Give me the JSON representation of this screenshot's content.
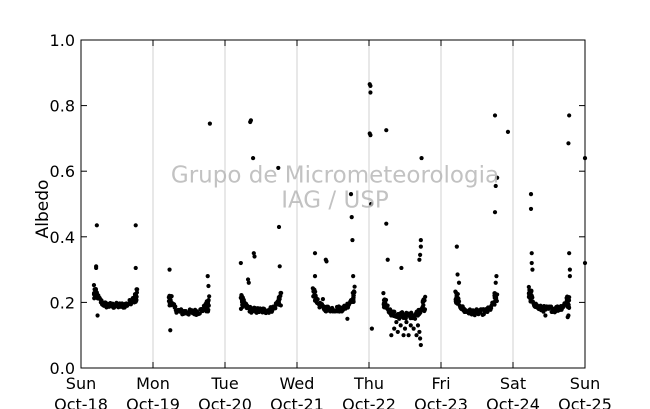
{
  "chart_data": {
    "type": "scatter",
    "ylabel": "Albedo",
    "ylim": [
      0,
      1
    ],
    "yticks": [
      0.0,
      0.2,
      0.4,
      0.6,
      0.8,
      1.0
    ],
    "ytick_labels": [
      "0.0",
      "0.2",
      "0.4",
      "0.6",
      "0.8",
      "1.0"
    ],
    "xlim": [
      0,
      7
    ],
    "xticks": [
      {
        "day": "Sun",
        "date": "Oct-18"
      },
      {
        "day": "Mon",
        "date": "Oct-19"
      },
      {
        "day": "Tue",
        "date": "Oct-20"
      },
      {
        "day": "Wed",
        "date": "Oct-21"
      },
      {
        "day": "Thu",
        "date": "Oct-22"
      },
      {
        "day": "Fri",
        "date": "Oct-23"
      },
      {
        "day": "Sat",
        "date": "Oct-24"
      },
      {
        "day": "Sun",
        "date": "Oct-25"
      }
    ],
    "grid": "vertical",
    "marker_color": "#000000",
    "watermark": [
      "Grupo de Micrometeorologia",
      "IAG / USP"
    ],
    "days": [
      {
        "day_offset": 0,
        "start": 0.18,
        "end": 0.78,
        "base": 0.19,
        "rise_start": 0.25,
        "rise_end": 0.24,
        "extra": [
          [
            0.22,
            0.435
          ],
          [
            0.21,
            0.31
          ],
          [
            0.21,
            0.305
          ],
          [
            0.23,
            0.16
          ],
          [
            0.76,
            0.435
          ],
          [
            0.76,
            0.305
          ],
          [
            0.75,
            0.225
          ],
          [
            0.74,
            0.2
          ]
        ]
      },
      {
        "day_offset": 1,
        "start": 0.22,
        "end": 0.78,
        "base": 0.17,
        "rise_start": 0.22,
        "rise_end": 0.21,
        "extra": [
          [
            0.23,
            0.3
          ],
          [
            0.24,
            0.115
          ],
          [
            0.76,
            0.28
          ],
          [
            0.77,
            0.25
          ],
          [
            0.79,
            0.745
          ]
        ]
      },
      {
        "day_offset": 2,
        "start": 0.22,
        "end": 0.78,
        "base": 0.175,
        "rise_start": 0.22,
        "rise_end": 0.23,
        "extra": [
          [
            0.22,
            0.32
          ],
          [
            0.35,
            0.75
          ],
          [
            0.36,
            0.755
          ],
          [
            0.39,
            0.64
          ],
          [
            0.4,
            0.35
          ],
          [
            0.41,
            0.34
          ],
          [
            0.32,
            0.27
          ],
          [
            0.33,
            0.26
          ],
          [
            0.74,
            0.61
          ],
          [
            0.75,
            0.43
          ],
          [
            0.76,
            0.31
          ]
        ]
      },
      {
        "day_offset": 3,
        "start": 0.22,
        "end": 0.8,
        "base": 0.18,
        "rise_start": 0.24,
        "rise_end": 0.24,
        "extra": [
          [
            0.25,
            0.35
          ],
          [
            0.25,
            0.28
          ],
          [
            0.4,
            0.33
          ],
          [
            0.41,
            0.325
          ],
          [
            0.36,
            0.21
          ],
          [
            0.75,
            0.53
          ],
          [
            0.76,
            0.46
          ],
          [
            0.77,
            0.39
          ],
          [
            0.78,
            0.28
          ],
          [
            0.7,
            0.15
          ]
        ]
      },
      {
        "day_offset": 4,
        "start": 0.2,
        "end": 0.78,
        "base": 0.16,
        "rise_start": 0.22,
        "rise_end": 0.21,
        "extra": [
          [
            0.01,
            0.865
          ],
          [
            0.02,
            0.86
          ],
          [
            0.02,
            0.84
          ],
          [
            0.01,
            0.715
          ],
          [
            0.02,
            0.71
          ],
          [
            0.04,
            0.12
          ],
          [
            0.03,
            0.5
          ],
          [
            0.24,
            0.725
          ],
          [
            0.24,
            0.44
          ],
          [
            0.26,
            0.33
          ],
          [
            0.45,
            0.305
          ],
          [
            0.73,
            0.64
          ],
          [
            0.72,
            0.39
          ],
          [
            0.72,
            0.37
          ],
          [
            0.71,
            0.345
          ],
          [
            0.7,
            0.33
          ],
          [
            0.72,
            0.07
          ],
          [
            0.71,
            0.09
          ],
          [
            0.7,
            0.11
          ],
          [
            0.66,
            0.1
          ],
          [
            0.62,
            0.12
          ],
          [
            0.58,
            0.13
          ],
          [
            0.55,
            0.1
          ],
          [
            0.5,
            0.12
          ],
          [
            0.48,
            0.1
          ],
          [
            0.44,
            0.13
          ],
          [
            0.4,
            0.11
          ],
          [
            0.38,
            0.14
          ],
          [
            0.35,
            0.12
          ],
          [
            0.31,
            0.1
          ],
          [
            0.52,
            0.14
          ],
          [
            0.6,
            0.16
          ],
          [
            0.64,
            0.15
          ],
          [
            0.68,
            0.13
          ],
          [
            0.46,
            0.17
          ],
          [
            0.42,
            0.15
          ]
        ]
      },
      {
        "day_offset": 5,
        "start": 0.2,
        "end": 0.78,
        "base": 0.17,
        "rise_start": 0.23,
        "rise_end": 0.23,
        "extra": [
          [
            0.22,
            0.37
          ],
          [
            0.23,
            0.285
          ],
          [
            0.25,
            0.26
          ],
          [
            0.75,
            0.77
          ],
          [
            0.76,
            0.555
          ],
          [
            0.75,
            0.475
          ],
          [
            0.78,
            0.58
          ],
          [
            0.93,
            0.72
          ],
          [
            0.77,
            0.28
          ],
          [
            0.76,
            0.26
          ]
        ]
      },
      {
        "day_offset": 6,
        "start": 0.22,
        "end": 0.78,
        "base": 0.18,
        "rise_start": 0.24,
        "rise_end": 0.22,
        "extra": [
          [
            0.25,
            0.53
          ],
          [
            0.25,
            0.485
          ],
          [
            0.26,
            0.35
          ],
          [
            0.26,
            0.32
          ],
          [
            0.27,
            0.3
          ],
          [
            0.78,
            0.77
          ],
          [
            0.77,
            0.685
          ],
          [
            0.78,
            0.35
          ],
          [
            0.79,
            0.3
          ],
          [
            0.79,
            0.28
          ],
          [
            0.76,
            0.155
          ],
          [
            0.77,
            0.16
          ],
          [
            0.45,
            0.16
          ],
          [
            0.58,
            0.17
          ]
        ]
      },
      {
        "day_offset": 7,
        "start": 0.0,
        "end": 0.0,
        "base": 0.0,
        "rise_start": 0.0,
        "rise_end": 0.0,
        "extra": [
          [
            0.0,
            0.64
          ],
          [
            0.0,
            0.32
          ]
        ]
      }
    ]
  }
}
